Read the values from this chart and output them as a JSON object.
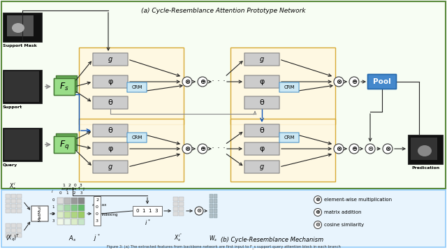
{
  "title_a": "(a) Cycle-Resemblance Attention Prototype Network",
  "title_b": "(b) Cycle-Resemblance Mechanism",
  "caption": "Figure 3: (a) The extracted features from backbone network are first input to F_s support query attention block in each branch",
  "bg_green": "#e8f5e9",
  "bg_yellow": "#fff8e1",
  "bg_blue": "#e3f2fd",
  "ec_green": "#5a8a3c",
  "ec_yellow": "#d4a020",
  "ec_blue": "#90caf9",
  "crm_fc": "#cce8f4",
  "crm_ec": "#5599cc",
  "pool_fc": "#4488cc",
  "pool_ec": "#2266aa",
  "fs_fc": "#77bb66",
  "fs_ec": "#447733",
  "gray_fc": "#cccccc",
  "gray_ec": "#888888",
  "black_img": "#111111",
  "arrow_dark": "#222222",
  "arrow_blue": "#1155bb",
  "arrow_gray": "#888888",
  "dot_fill": "#bbbbcc"
}
